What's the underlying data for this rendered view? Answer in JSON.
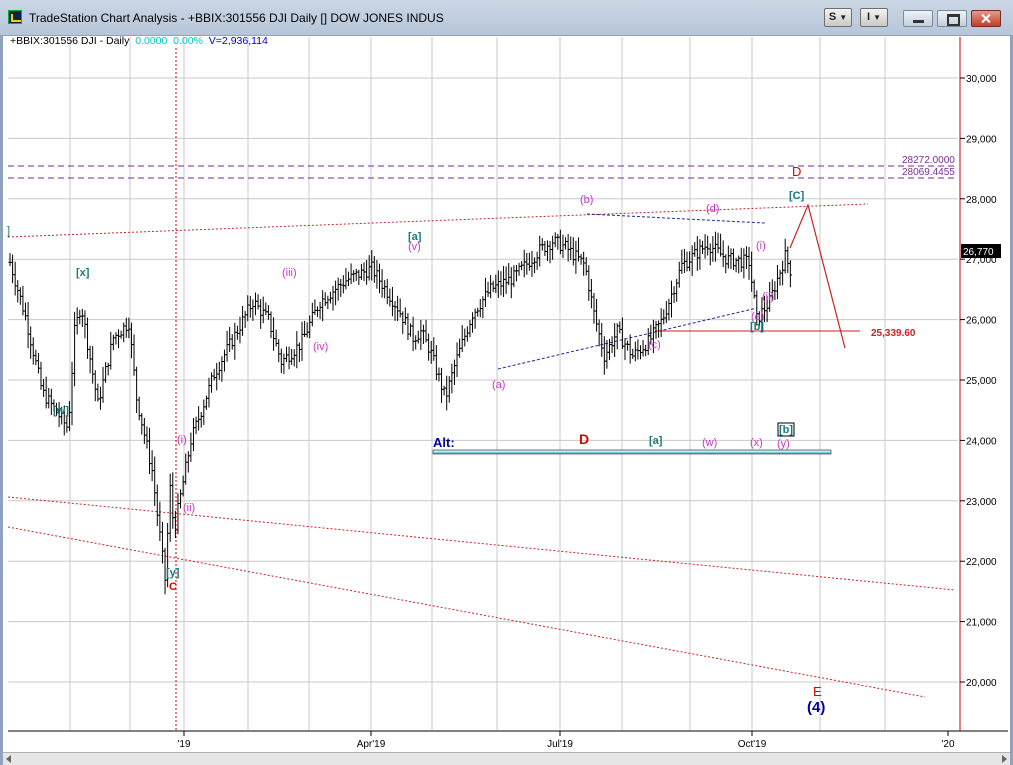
{
  "window": {
    "title": "TradeStation Chart Analysis - +BBIX:301556 DJI Daily [] DOW JONES INDUS",
    "strategy_button": "S",
    "indicator_button": "I"
  },
  "symbol_bar": {
    "symbol": "+BBIX:301556 DJI - Daily",
    "change": "0.0000",
    "change_pct": "0.00%",
    "volume": "V=2,936,114"
  },
  "price_axis": {
    "ticks": [
      "30,000",
      "29,000",
      "28,000",
      "27,000",
      "26,000",
      "25,000",
      "24,000",
      "23,000",
      "22,000",
      "21,000",
      "20,000"
    ],
    "last_price": "26,770"
  },
  "time_axis": {
    "labels": [
      "'19",
      "Apr'19",
      "Jul'19",
      "Oct'19",
      "'20"
    ]
  },
  "horizontal_levels": {
    "level_1": "28272.0000",
    "level_2": "28069.4455",
    "support": "25,339.60"
  },
  "wave_labels": {
    "partial_left": "]",
    "w": "[w]",
    "x": "[x]",
    "y": "[y]",
    "C_low": "C",
    "i_low": "(i)",
    "ii_low": "(ii)",
    "iii": "(iii)",
    "iv": "(iv)",
    "a_sq": "[a]",
    "v": "(v)",
    "a_low": "(a)",
    "b_top": "(b)",
    "c_low": "(c)",
    "d_top": "(d)",
    "e_low": "(e)",
    "b_sq": "[b]",
    "i_late": "(i)",
    "ii_late": "(ii)",
    "C_sq": "[C]",
    "D_top": "D",
    "E": "E",
    "four": "(4)"
  },
  "alt_box": {
    "alt": "Alt:",
    "D": "D",
    "a": "[a]",
    "w": "(w)",
    "x": "(x)",
    "y": "(y)",
    "b": "[b]"
  },
  "colors": {
    "wave_magenta": "#cc33cc",
    "wave_teal": "#1a7a7a",
    "wave_red": "#dd0000",
    "wave_blue": "#000099",
    "trend_red": "#cc2222",
    "level_purple": "#7a2a9a"
  },
  "chart_data": {
    "type": "ohlc",
    "ylim": [
      19400,
      30600
    ],
    "anchors": [
      [
        0,
        26950
      ],
      [
        12,
        26050
      ],
      [
        25,
        24800
      ],
      [
        45,
        24200
      ],
      [
        50,
        25800
      ],
      [
        55,
        26250
      ],
      [
        68,
        24600
      ],
      [
        80,
        25700
      ],
      [
        92,
        25950
      ],
      [
        98,
        24700
      ],
      [
        110,
        23500
      ],
      [
        120,
        21700
      ],
      [
        124,
        23200
      ],
      [
        127,
        22500
      ],
      [
        140,
        24000
      ],
      [
        158,
        25100
      ],
      [
        178,
        25900
      ],
      [
        188,
        26300
      ],
      [
        200,
        26000
      ],
      [
        210,
        25300
      ],
      [
        225,
        25600
      ],
      [
        240,
        26300
      ],
      [
        260,
        26650
      ],
      [
        280,
        26850
      ],
      [
        300,
        26200
      ],
      [
        312,
        25700
      ],
      [
        318,
        25800
      ],
      [
        325,
        25500
      ],
      [
        337,
        24700
      ],
      [
        345,
        25300
      ],
      [
        358,
        26100
      ],
      [
        372,
        26500
      ],
      [
        390,
        26700
      ],
      [
        410,
        27150
      ],
      [
        420,
        27300
      ],
      [
        430,
        27200
      ],
      [
        445,
        26900
      ],
      [
        452,
        26100
      ],
      [
        460,
        25400
      ],
      [
        470,
        25800
      ],
      [
        482,
        25400
      ],
      [
        495,
        25650
      ],
      [
        505,
        26000
      ],
      [
        520,
        26900
      ],
      [
        540,
        27250
      ],
      [
        555,
        27000
      ],
      [
        572,
        26950
      ],
      [
        578,
        26000
      ],
      [
        588,
        26300
      ],
      [
        600,
        27050
      ],
      [
        605,
        26770
      ]
    ]
  }
}
